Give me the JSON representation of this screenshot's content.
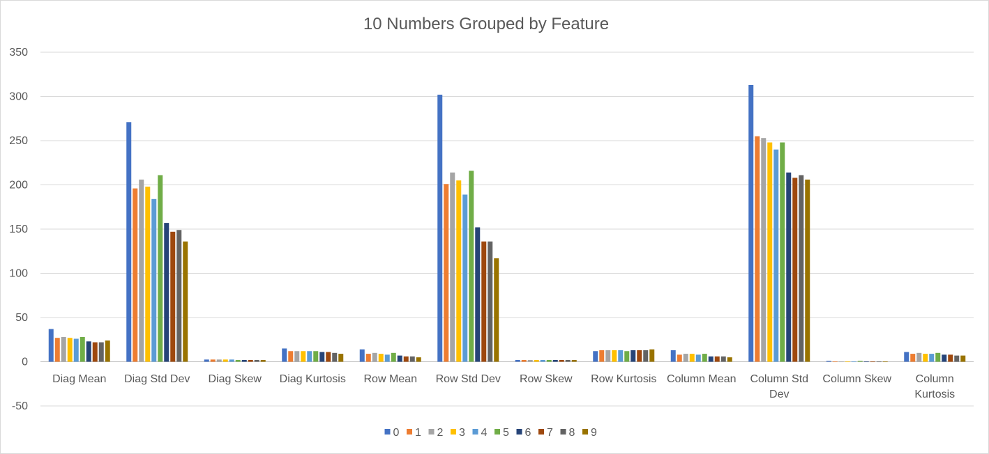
{
  "chart_data": {
    "type": "bar",
    "title": "10 Numbers Grouped by Feature",
    "xlabel": "",
    "ylabel": "",
    "ylim": [
      -50,
      350
    ],
    "yticks": [
      -50,
      0,
      50,
      100,
      150,
      200,
      250,
      300,
      350
    ],
    "grid": true,
    "legend_position": "bottom",
    "categories": [
      [
        "Diag Mean"
      ],
      [
        "Diag Std Dev"
      ],
      [
        "Diag Skew"
      ],
      [
        "Diag Kurtosis"
      ],
      [
        "Row Mean"
      ],
      [
        "Row Std Dev"
      ],
      [
        "Row Skew"
      ],
      [
        "Row Kurtosis"
      ],
      [
        "Column Mean"
      ],
      [
        "Column Std",
        "Dev"
      ],
      [
        "Column Skew"
      ],
      [
        "Column",
        "Kurtosis"
      ]
    ],
    "series": [
      {
        "name": "0",
        "color": "#4472C4",
        "values": [
          37,
          271,
          2.5,
          15,
          14,
          302,
          2,
          12,
          13,
          313,
          1,
          11
        ]
      },
      {
        "name": "1",
        "color": "#ED7D31",
        "values": [
          27,
          196,
          2.5,
          12,
          9,
          201,
          2,
          13,
          8,
          255,
          0.2,
          9
        ]
      },
      {
        "name": "2",
        "color": "#A5A5A5",
        "values": [
          28,
          206,
          2.5,
          12,
          10,
          214,
          2,
          13,
          9,
          253,
          0.2,
          10
        ]
      },
      {
        "name": "3",
        "color": "#FFC000",
        "values": [
          27,
          198,
          2.5,
          12,
          9,
          205,
          2,
          13,
          9,
          248,
          0.2,
          9
        ]
      },
      {
        "name": "4",
        "color": "#5B9BD5",
        "values": [
          26,
          184,
          2.5,
          12,
          8,
          189,
          2,
          13,
          8,
          240,
          0.2,
          9
        ]
      },
      {
        "name": "5",
        "color": "#70AD47",
        "values": [
          28,
          211,
          2,
          12,
          10,
          216,
          2,
          12,
          9,
          248,
          1,
          10
        ]
      },
      {
        "name": "6",
        "color": "#264478",
        "values": [
          23,
          157,
          2,
          11,
          7,
          152,
          2,
          13,
          6,
          214,
          0.2,
          8
        ]
      },
      {
        "name": "7",
        "color": "#9E480E",
        "values": [
          22,
          147,
          2,
          11,
          6,
          136,
          2,
          13,
          6,
          208,
          0.2,
          8
        ]
      },
      {
        "name": "8",
        "color": "#636363",
        "values": [
          22,
          149,
          2,
          10,
          6,
          136,
          2,
          13,
          6,
          211,
          0.2,
          7
        ]
      },
      {
        "name": "9",
        "color": "#997300",
        "values": [
          24,
          136,
          2,
          9,
          5,
          117,
          2,
          14,
          5,
          206,
          0.2,
          7
        ]
      }
    ]
  }
}
